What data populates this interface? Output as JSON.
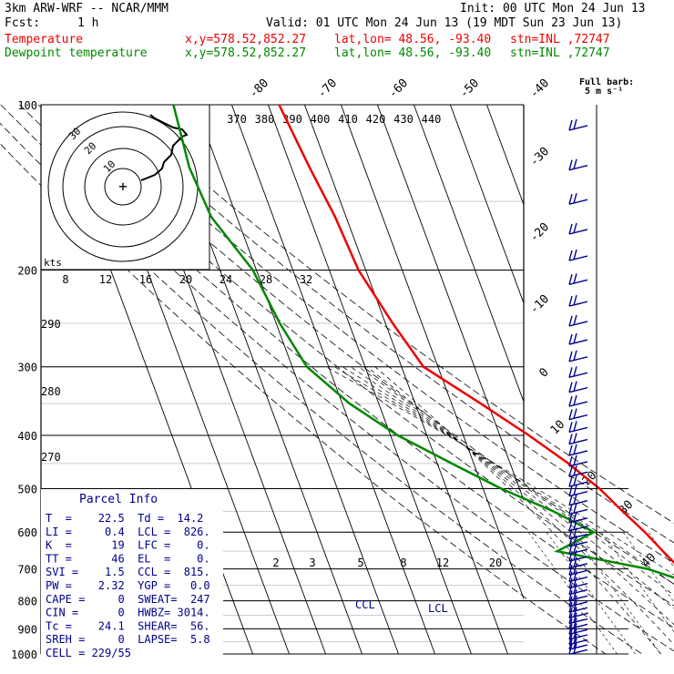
{
  "header": {
    "model": "3km ARW-WRF -- NCAR/MMM",
    "init": "Init: 00 UTC Mon 24 Jun 13",
    "fcst_label": "Fcst:",
    "fcst_value": "1 h",
    "valid": "Valid: 01 UTC Mon 24 Jun 13 (19 MDT Sun 23 Jun 13)",
    "temp_line": {
      "label": "Temperature",
      "xy": "x,y=578.52,852.27",
      "latlon": "lat,lon= 48.56, -93.40",
      "stn": "stn=INL ,72747"
    },
    "dew_line": {
      "label": "Dewpoint temperature",
      "xy": "x,y=578.52,852.27",
      "latlon": "lat,lon= 48.56, -93.40",
      "stn": "stn=INL ,72747"
    }
  },
  "colors": {
    "temperature": "#ee0000",
    "dewpoint": "#008800",
    "text": "#000000",
    "parcel": "#00008b",
    "grid": "#000000",
    "header_red": "#ee0000",
    "header_green": "#008800"
  },
  "barb_legend": {
    "line1": "Full barb:",
    "line2": "5 m s⁻¹"
  },
  "parcel_info": {
    "title": "Parcel Info",
    "rows": [
      "T  =    22.5  Td =  14.2",
      "LI =     0.4  LCL =  826.",
      "K  =      19  LFC =    0.",
      "TT =      46  EL  =    0.",
      "SVI =    1.5  CCL =  815.",
      "PW =    2.32  YGP =   0.0",
      "CAPE =     0  SWEAT=  247",
      "CIN =      0  HWBZ= 3014.",
      "Tc =    24.1  SHEAR=  56.",
      "SREH =     0  LAPSE=  5.8",
      "CELL = 229/55"
    ]
  },
  "annotations": {
    "ccl": "CCL",
    "lcl": "LCL",
    "kts": "kts"
  },
  "chart_data": {
    "type": "line",
    "title": "",
    "y_axis": {
      "label": "",
      "scale": "log",
      "range": [
        1000,
        100
      ],
      "ticks": [
        "100",
        "200",
        "300",
        "400",
        "500",
        "600",
        "700",
        "800",
        "900",
        "1000"
      ]
    },
    "isotherm_labels": [
      "-80",
      "-70",
      "-60",
      "-50",
      "-40",
      "-30",
      "-20",
      "-10",
      "0",
      "10",
      "20",
      "30",
      "40"
    ],
    "theta_labels": [
      "370",
      "380",
      "390",
      "400",
      "410",
      "420",
      "430",
      "440"
    ],
    "dry_adiabat_labels": [
      "290",
      "280",
      "270"
    ],
    "mixing_ratio_labels": [
      "2",
      "3",
      "5",
      "8",
      "12",
      "20"
    ],
    "hodo_ring_labels": [
      "10",
      "20",
      "30"
    ],
    "hodo_speed_labels": [
      "8",
      "12",
      "16",
      "20",
      "24",
      "28",
      "32"
    ],
    "series": [
      {
        "name": "Temperature",
        "points": [
          [
            100,
            -57
          ],
          [
            130,
            -55
          ],
          [
            160,
            -53
          ],
          [
            200,
            -52
          ],
          [
            250,
            -48
          ],
          [
            300,
            -44
          ],
          [
            350,
            -32
          ],
          [
            400,
            -22
          ],
          [
            450,
            -14
          ],
          [
            500,
            -8
          ],
          [
            550,
            -4
          ],
          [
            600,
            0
          ],
          [
            650,
            3
          ],
          [
            700,
            6
          ],
          [
            750,
            8
          ],
          [
            800,
            11
          ],
          [
            850,
            15
          ],
          [
            900,
            19
          ],
          [
            950,
            23
          ]
        ]
      },
      {
        "name": "Dewpoint temperature",
        "points": [
          [
            100,
            -86
          ],
          [
            130,
            -88
          ],
          [
            160,
            -87
          ],
          [
            200,
            -81
          ],
          [
            250,
            -79
          ],
          [
            300,
            -76
          ],
          [
            350,
            -68
          ],
          [
            400,
            -58
          ],
          [
            450,
            -46
          ],
          [
            500,
            -35
          ],
          [
            550,
            -23
          ],
          [
            600,
            -14
          ],
          [
            650,
            -26
          ],
          [
            700,
            -3
          ],
          [
            750,
            9
          ],
          [
            800,
            12
          ],
          [
            850,
            13
          ],
          [
            900,
            14
          ],
          [
            950,
            14
          ]
        ]
      }
    ]
  }
}
